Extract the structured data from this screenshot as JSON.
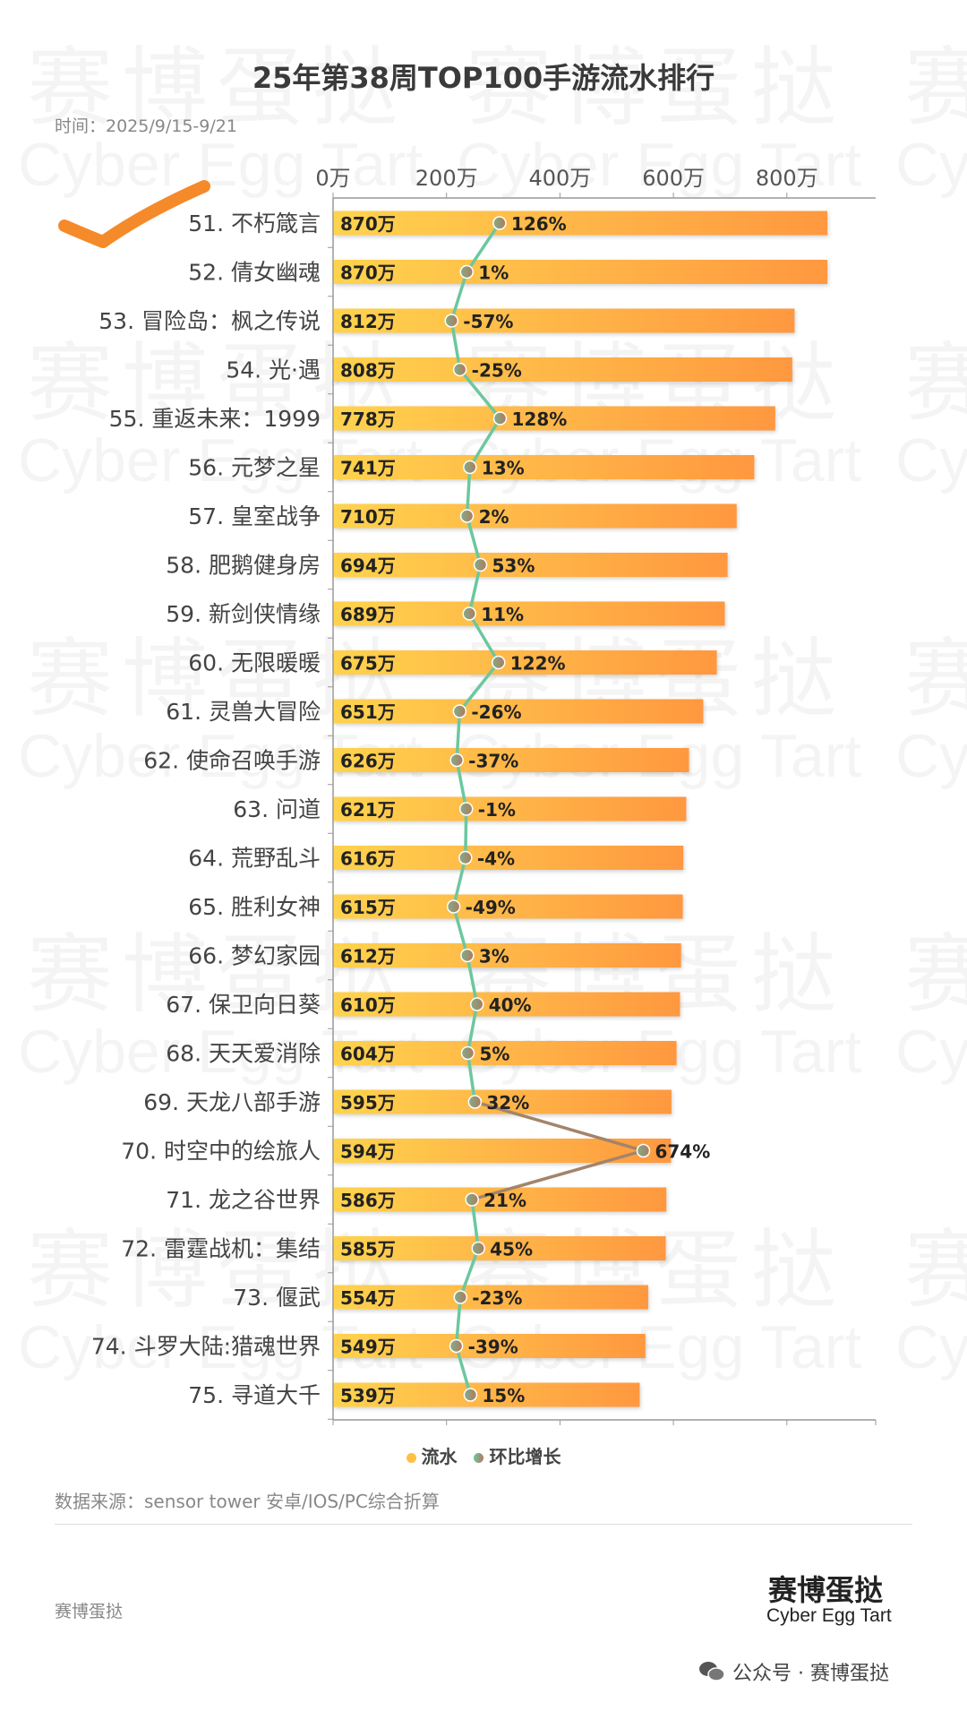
{
  "title": "25年第38周TOP100手游流水排行",
  "date": "时间：2025/9/15-9/21",
  "watermark": {
    "cn": "赛博蛋挞",
    "en": "Cyber Egg Tart"
  },
  "colors": {
    "bar_start": "#ffd34e",
    "bar_end": "#ff9840",
    "line": "#6cc79f",
    "line_peak": "#d9703e",
    "dot": "#8f9a84"
  },
  "chart_data": {
    "type": "bar",
    "orientation": "horizontal",
    "x_ticks": [
      "0万",
      "200万",
      "400万",
      "600万",
      "800万"
    ],
    "xlim": [
      0,
      900
    ],
    "unit": "万",
    "categories": [
      "51. 不朽箴言",
      "52. 倩女幽魂",
      "53. 冒险岛：枫之传说",
      "54. 光·遇",
      "55. 重返未来：1999",
      "56. 元梦之星",
      "57. 皇室战争",
      "58. 肥鹅健身房",
      "59. 新剑侠情缘",
      "60. 无限暖暖",
      "61. 灵兽大冒险",
      "62. 使命召唤手游",
      "63. 问道",
      "64. 荒野乱斗",
      "65. 胜利女神",
      "66. 梦幻家园",
      "67. 保卫向日葵",
      "68. 天天爱消除",
      "69. 天龙八部手游",
      "70. 时空中的绘旅人",
      "71. 龙之谷世界",
      "72. 雷霆战机：集结",
      "73. 偃武",
      "74. 斗罗大陆:猎魂世界",
      "75. 寻道大千"
    ],
    "series": [
      {
        "name": "流水",
        "type": "bar",
        "values": [
          870,
          870,
          812,
          808,
          778,
          741,
          710,
          694,
          689,
          675,
          651,
          626,
          621,
          616,
          615,
          612,
          610,
          604,
          595,
          594,
          586,
          585,
          554,
          549,
          539
        ],
        "labels": [
          "870万",
          "870万",
          "812万",
          "808万",
          "778万",
          "741万",
          "710万",
          "694万",
          "689万",
          "675万",
          "651万",
          "626万",
          "621万",
          "616万",
          "615万",
          "612万",
          "610万",
          "604万",
          "595万",
          "594万",
          "586万",
          "585万",
          "554万",
          "549万",
          "539万"
        ]
      },
      {
        "name": "环比增长",
        "type": "line",
        "values": [
          126,
          1,
          -57,
          -25,
          128,
          13,
          2,
          53,
          11,
          122,
          -26,
          -37,
          -1,
          -4,
          -49,
          3,
          40,
          5,
          32,
          674,
          21,
          45,
          -23,
          -39,
          15
        ],
        "labels": [
          "126%",
          "1%",
          "-57%",
          "-25%",
          "128%",
          "13%",
          "2%",
          "53%",
          "11%",
          "122%",
          "-26%",
          "-37%",
          "-1%",
          "-4%",
          "-49%",
          "3%",
          "40%",
          "5%",
          "32%",
          "674%",
          "21%",
          "45%",
          "-23%",
          "-39%",
          "15%"
        ]
      }
    ],
    "legend": [
      "流水",
      "环比增长"
    ],
    "legend_position": "bottom",
    "grid": false
  },
  "footer": {
    "source": "数据来源：sensor tower 安卓/IOS/PC综合折算",
    "brand_left": "赛博蛋挞",
    "logo_cn": "赛博蛋挞",
    "logo_en": "Cyber Egg Tart",
    "wechat": "公众号 · 赛博蛋挞"
  }
}
